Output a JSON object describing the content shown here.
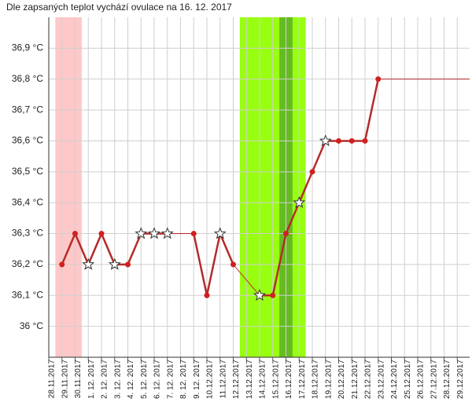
{
  "chart_data": {
    "type": "line",
    "title": "Dle zapsaných teplot vychází ovulace na 16. 12. 2017",
    "categories": [
      "28.11.2017",
      "29.11.2017",
      "30.11.2017",
      "1. 12. 2017",
      "2. 12. 2017",
      "3. 12. 2017",
      "4. 12. 2017",
      "5. 12. 2017",
      "6. 12. 2017",
      "7. 12. 2017",
      "8. 12. 2017",
      "9. 12. 2017",
      "10.12.2017",
      "11.12.2017",
      "12.12.2017",
      "13.12.2017",
      "14.12.2017",
      "15.12.2017",
      "16.12.2017",
      "17.12.2017",
      "18.12.2017",
      "19.12.2017",
      "20.12.2017",
      "21.12.2017",
      "22.12.2017",
      "23.12.2017",
      "24.12.2017",
      "25.12.2017",
      "26.12.2017",
      "27.12.2017",
      "28.12.2017",
      "29.12.2017"
    ],
    "series": [
      {
        "color": "#b52a2a",
        "values": [
          null,
          36.2,
          36.3,
          36.2,
          36.3,
          36.2,
          36.2,
          36.3,
          36.3,
          36.3,
          null,
          36.3,
          36.1,
          36.3,
          36.2,
          null,
          36.1,
          36.1,
          36.3,
          36.4,
          36.5,
          36.6,
          36.6,
          36.6,
          36.6,
          36.8,
          null,
          null,
          null,
          null,
          null,
          null
        ],
        "markers": [
          null,
          "dot",
          "dot",
          "star",
          "dot",
          "star",
          "dot",
          "star",
          "star",
          "star",
          null,
          "dot",
          "dot",
          "star",
          "dot",
          null,
          "star",
          "dot",
          "dot",
          "star",
          "dot",
          "star",
          "dot",
          "dot",
          "dot",
          "dot",
          null,
          null,
          null,
          null,
          null,
          null
        ]
      }
    ],
    "bands": [
      {
        "from": "29.11.2017",
        "to": "30.11.2017",
        "color": "#ffc8c8"
      },
      {
        "from": "13.12.2017",
        "to": "17.12.2017",
        "color": "#99ff11"
      },
      {
        "from": "16.12.2017",
        "to": "16.12.2017",
        "color": "#66bb22"
      }
    ],
    "ylim": [
      35.9,
      37.0
    ],
    "yticks": [
      {
        "value": 36,
        "label": "36 °C"
      },
      {
        "value": 36.1,
        "label": "36,1 °C"
      },
      {
        "value": 36.2,
        "label": "36,2 °C"
      },
      {
        "value": 36.3,
        "label": "36,3 °C"
      },
      {
        "value": 36.4,
        "label": "36,4 °C"
      },
      {
        "value": 36.5,
        "label": "36,5 °C"
      },
      {
        "value": 36.6,
        "label": "36,6 °C"
      },
      {
        "value": 36.7,
        "label": "36,7 °C"
      },
      {
        "value": 36.8,
        "label": "36,8 °C"
      },
      {
        "value": 36.9,
        "label": "36,9 °C"
      }
    ],
    "grid": true
  }
}
